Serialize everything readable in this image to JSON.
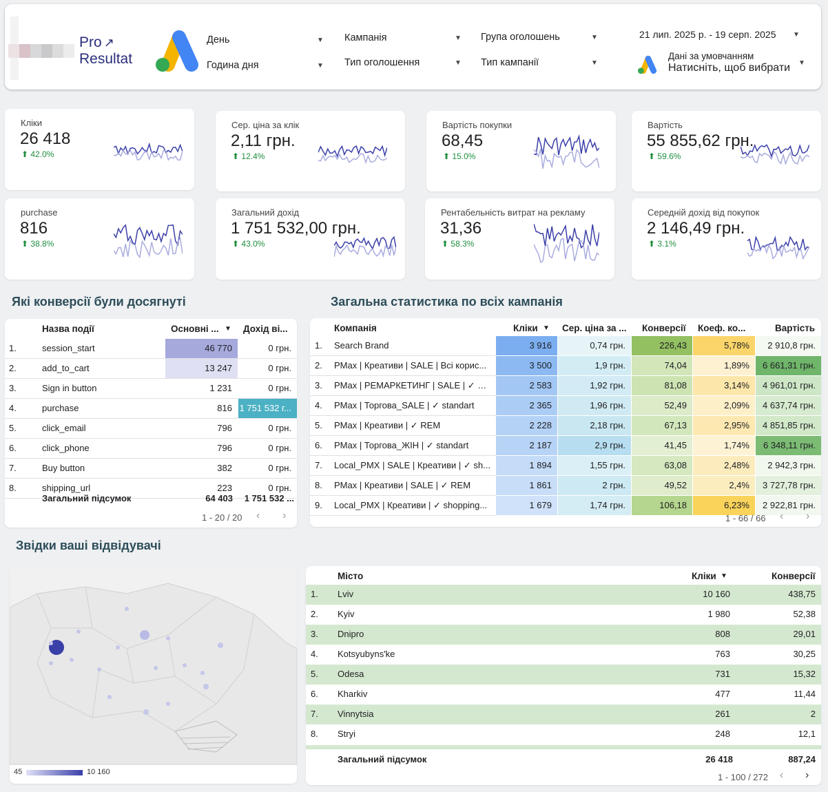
{
  "header": {
    "logo_line1": "Pro",
    "logo_line2": "Resultat",
    "filters": {
      "day": "День",
      "hour": "Година дня",
      "campaign": "Кампанія",
      "ad_type": "Тип оголошення",
      "ad_group": "Група оголошень",
      "campaign_type": "Тип кампанії"
    },
    "date_range": "21 лип. 2025 р. - 19 серп. 2025 р.",
    "account_sub": "Дані за умовчанням",
    "account_main": "Натисніть, щоб вибрати"
  },
  "kpis": [
    {
      "label": "Кліки",
      "value": "26 418",
      "delta": "42.0%"
    },
    {
      "label": "Сер. ціна за клік",
      "value": "2,11 грн.",
      "delta": "12.4%"
    },
    {
      "label": "Вартість покупки",
      "value": "68,45",
      "delta": "15.0%"
    },
    {
      "label": "Вартість",
      "value": "55 855,62 грн.",
      "delta": "59.6%"
    },
    {
      "label": "purchase",
      "value": "816",
      "delta": "38.8%"
    },
    {
      "label": "Загальний дохід",
      "value": "1 751 532,00 грн.",
      "delta": "43.0%"
    },
    {
      "label": "Рентабельність витрат на рекламу",
      "value": "31,36",
      "delta": "58.3%"
    },
    {
      "label": "Середній дохід від покупок",
      "value": "2 146,49 грн.",
      "delta": "3.1%"
    }
  ],
  "conversions": {
    "title": "Які конверсії були досягнуті",
    "col_name": "Назва події",
    "col_main": "Основні ...",
    "col_income": "Дохід ві...",
    "rows": [
      {
        "n": "1.",
        "name": "session_start",
        "main": "46 770",
        "income": "0 грн."
      },
      {
        "n": "2.",
        "name": "add_to_cart",
        "main": "13 247",
        "income": "0 грн."
      },
      {
        "n": "3.",
        "name": "Sign in button",
        "main": "1 231",
        "income": "0 грн."
      },
      {
        "n": "4.",
        "name": "purchase",
        "main": "816",
        "income": "1 751 532 г..."
      },
      {
        "n": "5.",
        "name": "click_email",
        "main": "796",
        "income": "0 грн."
      },
      {
        "n": "6.",
        "name": "click_phone",
        "main": "796",
        "income": "0 грн."
      },
      {
        "n": "7.",
        "name": "Buy button",
        "main": "382",
        "income": "0 грн."
      },
      {
        "n": "8.",
        "name": "shipping_url",
        "main": "223",
        "income": "0 грн."
      }
    ],
    "total_label": "Загальний підсумок",
    "total_main": "64 403",
    "total_income": "1 751 532 ...",
    "pager": "1 - 20 / 20"
  },
  "campaigns": {
    "title": "Загальна статистика по всіх кампанія",
    "col_campaign": "Компанія",
    "col_clicks": "Кліки",
    "col_cpc": "Сер. ціна за ...",
    "col_conv": "Конверсії",
    "col_rate": "Коеф. ко...",
    "col_cost": "Вартість",
    "rows": [
      {
        "n": "1.",
        "name": "Search Brand",
        "clicks": "3 916",
        "cpc": "0,74 грн.",
        "conv": "226,43",
        "rate": "5,78%",
        "cost": "2 910,8 грн."
      },
      {
        "n": "2.",
        "name": "PMax | Креативи | SALE | Всі корис...",
        "clicks": "3 500",
        "cpc": "1,9 грн.",
        "conv": "74,04",
        "rate": "1,89%",
        "cost": "6 661,31 грн."
      },
      {
        "n": "3.",
        "name": "PMax | РЕМАРКЕТИНГ | SALE | ✓ pe...",
        "clicks": "2 583",
        "cpc": "1,92 грн.",
        "conv": "81,08",
        "rate": "3,14%",
        "cost": "4 961,01 грн."
      },
      {
        "n": "4.",
        "name": "PMax | Торгова_SALE | ✓ standart",
        "clicks": "2 365",
        "cpc": "1,96 грн.",
        "conv": "52,49",
        "rate": "2,09%",
        "cost": "4 637,74 грн."
      },
      {
        "n": "5.",
        "name": "PMax | Креативи | ✓ REM",
        "clicks": "2 228",
        "cpc": "2,18 грн.",
        "conv": "67,13",
        "rate": "2,95%",
        "cost": "4 851,85 грн."
      },
      {
        "n": "6.",
        "name": "PMax | Торгова_ЖІН | ✓ standart",
        "clicks": "2 187",
        "cpc": "2,9 грн.",
        "conv": "41,45",
        "rate": "1,74%",
        "cost": "6 348,11 грн."
      },
      {
        "n": "7.",
        "name": "Local_PMX | SALE | Креативи | ✓ sh...",
        "clicks": "1 894",
        "cpc": "1,55 грн.",
        "conv": "63,08",
        "rate": "2,48%",
        "cost": "2 942,3 грн."
      },
      {
        "n": "8.",
        "name": "PMax | Креативи | SALE | ✓ REM",
        "clicks": "1 861",
        "cpc": "2 грн.",
        "conv": "49,52",
        "rate": "2,4%",
        "cost": "3 727,78 грн."
      },
      {
        "n": "9.",
        "name": "Local_PMX | Креативи | ✓ shopping...",
        "clicks": "1 679",
        "cpc": "1,74 грн.",
        "conv": "106,18",
        "rate": "6,23%",
        "cost": "2 922,81 грн."
      }
    ],
    "pager": "1 - 66 / 66"
  },
  "visitors": {
    "title": "Звідки ваші відвідувачі",
    "legend_min": "45",
    "legend_max": "10 160",
    "col_city": "Місто",
    "col_clicks": "Кліки",
    "col_conv": "Конверсії",
    "rows": [
      {
        "n": "1.",
        "city": "Lviv",
        "clicks": "10 160",
        "conv": "438,75"
      },
      {
        "n": "2.",
        "city": "Kyiv",
        "clicks": "1 980",
        "conv": "52,38"
      },
      {
        "n": "3.",
        "city": "Dnipro",
        "clicks": "808",
        "conv": "29,01"
      },
      {
        "n": "4.",
        "city": "Kotsyubyns'ke",
        "clicks": "763",
        "conv": "30,25"
      },
      {
        "n": "5.",
        "city": "Odesa",
        "clicks": "731",
        "conv": "15,32"
      },
      {
        "n": "6.",
        "city": "Kharkiv",
        "clicks": "477",
        "conv": "11,44"
      },
      {
        "n": "7.",
        "city": "Vinnytsia",
        "clicks": "261",
        "conv": "2"
      },
      {
        "n": "8.",
        "city": "Stryi",
        "clicks": "248",
        "conv": "12,1"
      }
    ],
    "total_label": "Загальний підсумок",
    "total_clicks": "26 418",
    "total_conv": "887,24",
    "pager": "1 - 100 / 272"
  },
  "colors": {
    "dark_series": "#3b3fa8",
    "light_series": "#a9acde",
    "clicks_heat": "#7baef0",
    "cpc_heat": "#cfe9f3",
    "conv_heat": "#93c061",
    "rate_heat": "#fbd569",
    "cost_heat": "#6fb56a",
    "city_band": "#d4e8cf",
    "income_hi": "#4cb1c4"
  }
}
